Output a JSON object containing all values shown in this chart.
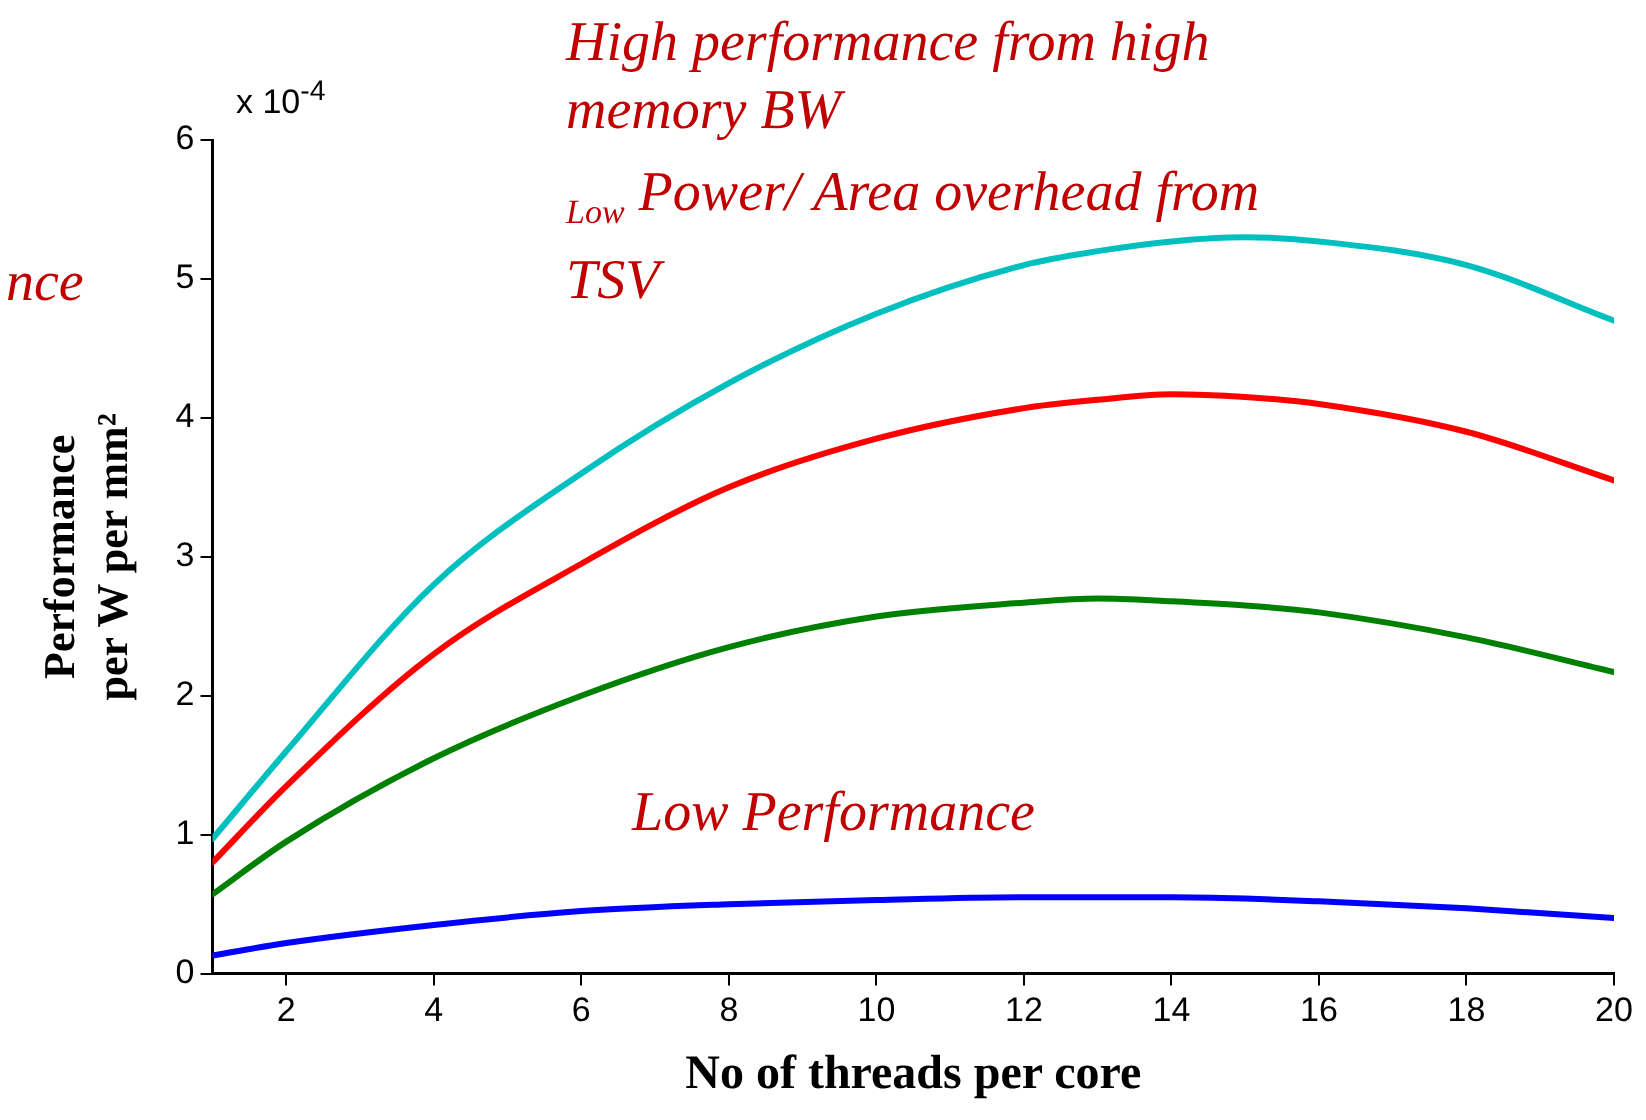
{
  "chart_data": {
    "type": "line",
    "xlabel": "No of threads per core",
    "ylabel": "Performance\nper W per mm²",
    "x": [
      1,
      2,
      4,
      6,
      8,
      10,
      12,
      13,
      14,
      15,
      16,
      18,
      20
    ],
    "series": [
      {
        "color": "#00bfbf",
        "values": [
          0.97,
          1.6,
          2.8,
          3.6,
          4.25,
          4.75,
          5.1,
          5.2,
          5.27,
          5.3,
          5.27,
          5.1,
          4.7
        ]
      },
      {
        "color": "#ff0000",
        "values": [
          0.8,
          1.35,
          2.3,
          2.95,
          3.5,
          3.85,
          4.07,
          4.13,
          4.17,
          4.15,
          4.1,
          3.9,
          3.55
        ]
      },
      {
        "color": "#008000",
        "values": [
          0.57,
          0.95,
          1.55,
          2.0,
          2.35,
          2.57,
          2.67,
          2.7,
          2.68,
          2.65,
          2.6,
          2.42,
          2.17
        ]
      },
      {
        "color": "#0000ff",
        "values": [
          0.13,
          0.22,
          0.35,
          0.45,
          0.5,
          0.53,
          0.55,
          0.55,
          0.55,
          0.54,
          0.52,
          0.47,
          0.4
        ]
      }
    ],
    "xlim": [
      1,
      20
    ],
    "xticks": [
      2,
      4,
      6,
      8,
      10,
      12,
      14,
      16,
      18,
      20
    ],
    "ylim": [
      0,
      6
    ],
    "yticks": [
      0,
      1,
      2,
      3,
      4,
      5,
      6
    ],
    "grid": false,
    "legend": false,
    "marker": "none",
    "line_style": "solid",
    "annotations": [
      "x 10$^{-4}$",
      "High performance from high\nmemory BW",
      "$_{Low}$ Power/ Area overhead from\nTSV",
      "Low Performance",
      "nce"
    ]
  }
}
